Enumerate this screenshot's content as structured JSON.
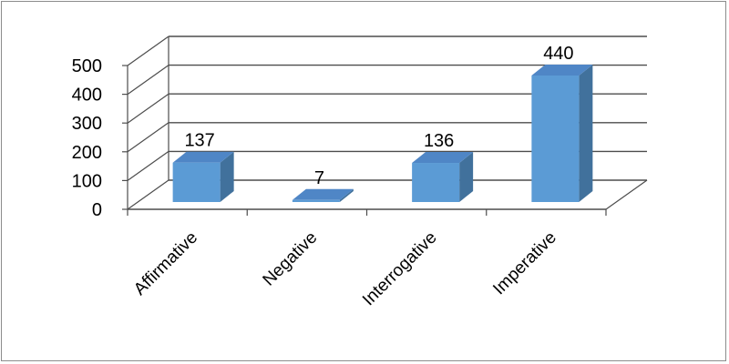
{
  "chart_data": {
    "type": "bar",
    "style": "3d-column",
    "title": "",
    "xlabel": "",
    "ylabel": "",
    "categories": [
      "Affirmative",
      "Negative",
      "Interrogative",
      "Imperative"
    ],
    "values": [
      137,
      7,
      136,
      440
    ],
    "data_labels": [
      "137",
      "7",
      "136",
      "440"
    ],
    "ylim": [
      0,
      500
    ],
    "yticks": [
      "0",
      "100",
      "200",
      "300",
      "400",
      "500"
    ],
    "grid": true,
    "legend": "none",
    "colors": {
      "bar_front": "#5b9bd5",
      "bar_side": "#41719c",
      "bar_top": "#4f86c6",
      "gridline": "#4d4d4d",
      "frame_border": "#8c8c8c"
    }
  }
}
